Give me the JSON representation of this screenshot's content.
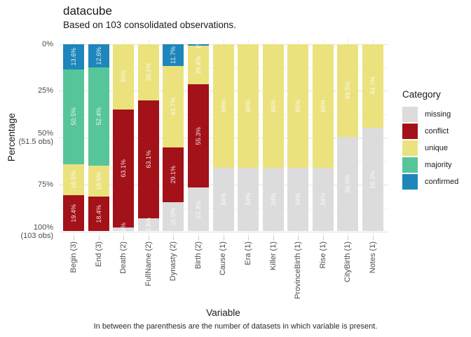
{
  "title": "datacube",
  "subtitle": "Based on 103 consolidated observations.",
  "caption": "In between the parenthesis are the number of datasets in which variable is present.",
  "axes": {
    "x_title": "Variable",
    "y_title": "Percentage"
  },
  "legend": {
    "title": "Category",
    "items": [
      {
        "label": "missing",
        "color": "#dcdcdc"
      },
      {
        "label": "conflict",
        "color": "#a31119"
      },
      {
        "label": "unique",
        "color": "#ebe27e"
      },
      {
        "label": "majority",
        "color": "#57c59a"
      },
      {
        "label": "confirmed",
        "color": "#1e86bb"
      }
    ]
  },
  "chart_data": {
    "type": "bar",
    "stacked": true,
    "orientation": "vertical",
    "y_axis_inverted": true,
    "title": "datacube",
    "subtitle": "Based on 103 consolidated observations.",
    "xlabel": "Variable",
    "ylabel": "Percentage",
    "ylim": [
      0,
      100
    ],
    "y_ticks": [
      {
        "pct": 0,
        "label": "0%"
      },
      {
        "pct": 25,
        "label": "25%"
      },
      {
        "pct": 50,
        "label": "50%",
        "sub": "(51.5 obs)"
      },
      {
        "pct": 75,
        "label": "75%"
      },
      {
        "pct": 100,
        "label": "100%",
        "sub": "(103 obs)"
      }
    ],
    "y_minor_ticks": [
      12.5,
      37.5,
      62.5,
      87.5
    ],
    "categories": [
      "Begin (3)",
      "End (3)",
      "Death (2)",
      "FullName (2)",
      "Dynasty (2)",
      "Birth (2)",
      "Cause (1)",
      "Era (1)",
      "Killer (1)",
      "ProvinceBirth (1)",
      "Rise (1)",
      "CityBirth (1)",
      "Notes (1)"
    ],
    "series": [
      {
        "name": "confirmed",
        "color": "#1e86bb",
        "values": [
          13.6,
          12.6,
          0,
          0,
          11.7,
          1,
          0,
          0,
          0,
          0,
          0,
          0,
          0
        ]
      },
      {
        "name": "majority",
        "color": "#57c59a",
        "values": [
          50.5,
          52.4,
          0,
          0,
          0,
          0,
          0,
          0,
          0,
          0,
          0,
          0,
          0
        ]
      },
      {
        "name": "unique",
        "color": "#ebe27e",
        "values": [
          16.5,
          16.5,
          35,
          30.1,
          43.7,
          20.4,
          66,
          66,
          66,
          66,
          66,
          49.5,
          44.7
        ]
      },
      {
        "name": "conflict",
        "color": "#a31119",
        "values": [
          19.4,
          18.4,
          63.1,
          63.1,
          29.1,
          55.3,
          0,
          0,
          0,
          0,
          0,
          0,
          0
        ]
      },
      {
        "name": "missing",
        "color": "#dcdcdc",
        "values": [
          0,
          0,
          1.9,
          6.8,
          15.5,
          23.3,
          34,
          34,
          34,
          34,
          34,
          50.5,
          55.3
        ]
      }
    ],
    "value_label_suffix": "%"
  }
}
